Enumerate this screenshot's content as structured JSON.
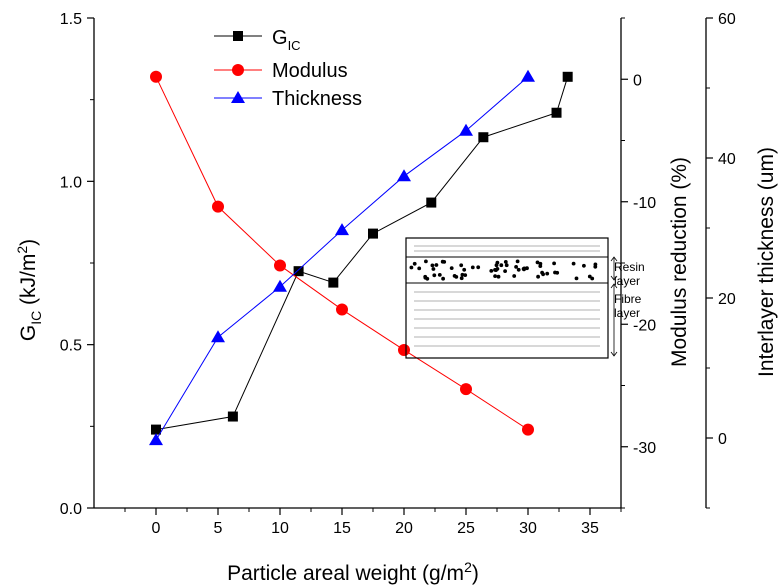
{
  "chart_data": {
    "type": "line",
    "xlabel_main": "Particle areal weight (g/m",
    "xlabel_sup": "2",
    "xlabel_end": ")",
    "xlim": [
      -5,
      37.5
    ],
    "x_ticks": [
      "0",
      "5",
      "10",
      "15",
      "20",
      "25",
      "30",
      "35"
    ],
    "axes": {
      "left": {
        "label_main": "G",
        "label_sub": "IC",
        "label_rest": " (kJ/m",
        "label_sup": "2",
        "label_end": ")",
        "ylim": [
          0,
          1.5
        ],
        "ticks": [
          "0.0",
          "0.5",
          "1.0",
          "1.5"
        ]
      },
      "right1": {
        "label": "Modulus reduction (%)",
        "ylim": [
          -35,
          5
        ],
        "ticks": [
          "0",
          "-10",
          "-20",
          "-30"
        ]
      },
      "right2": {
        "label": "Interlayer thickness (um)",
        "ylim": [
          -10,
          60
        ],
        "ticks": [
          "0",
          "20",
          "40",
          "60"
        ]
      }
    },
    "series": [
      {
        "name_main": "G",
        "name_sub": "IC",
        "axis": "left",
        "color": "#000000",
        "marker": "square",
        "x": [
          0,
          6.2,
          11.5,
          14.3,
          17.5,
          22.2,
          26.4,
          32.3,
          33.2
        ],
        "y": [
          0.24,
          0.28,
          0.725,
          0.69,
          0.84,
          0.935,
          1.135,
          1.21,
          1.32
        ]
      },
      {
        "name": "Modulus",
        "axis": "right1",
        "color": "#ff0000",
        "marker": "circle",
        "x": [
          0,
          5,
          10,
          15,
          20,
          25,
          30
        ],
        "y": [
          0.2,
          -10.4,
          -15.2,
          -18.8,
          -22.1,
          -25.3,
          -28.6
        ]
      },
      {
        "name": "Thickness",
        "axis": "right2",
        "color": "#0000ff",
        "marker": "triangle",
        "x": [
          0,
          5,
          10,
          15,
          20,
          25,
          30
        ],
        "y": [
          -0.3,
          14.4,
          21.6,
          29.7,
          37.4,
          43.9,
          51.6
        ]
      }
    ],
    "inset": {
      "labels": [
        "Resin",
        "layer",
        "Fibre",
        "layer"
      ]
    }
  }
}
